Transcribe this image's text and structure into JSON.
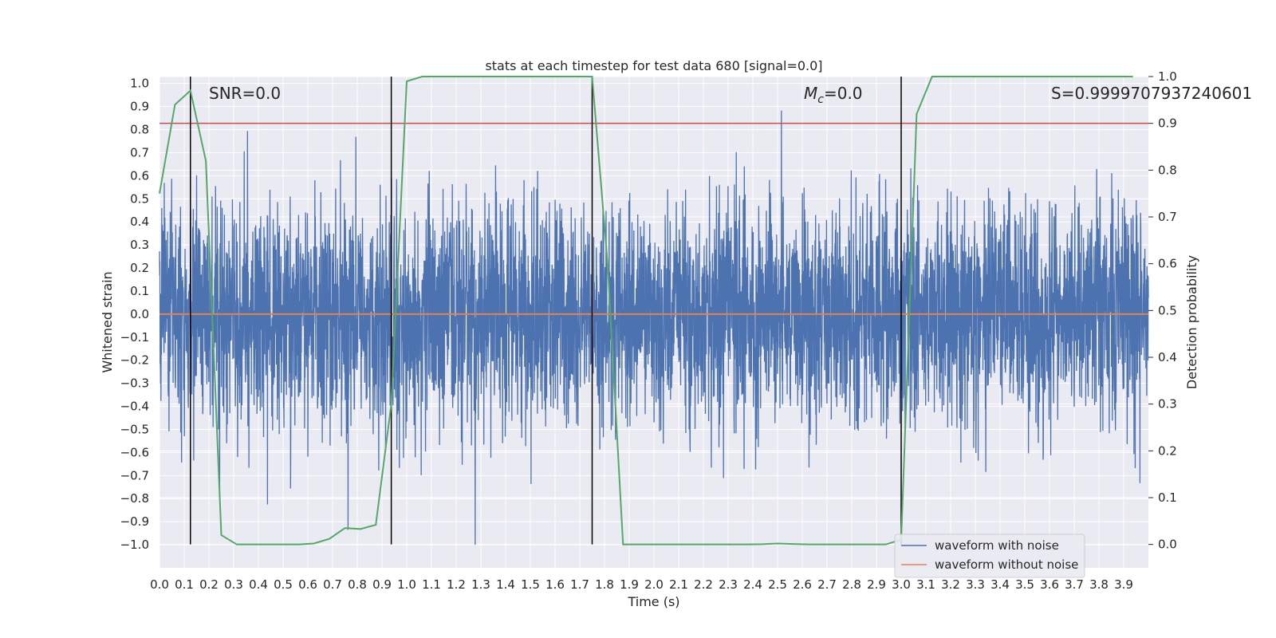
{
  "chart_data": {
    "type": "line",
    "title": "stats at each timestep for test data 680 [signal=0.0]",
    "xlabel": "Time (s)",
    "ylabel_left": "Whitened strain",
    "ylabel_right": "Detection probability",
    "xlim": [
      0.0,
      4.0
    ],
    "ylim_left": [
      -1.1,
      1.03
    ],
    "ylim_right": [
      -0.05,
      1.0
    ],
    "x_ticks": [
      "0.0",
      "0.1",
      "0.2",
      "0.3",
      "0.4",
      "0.5",
      "0.6",
      "0.7",
      "0.8",
      "0.9",
      "1.0",
      "1.1",
      "1.2",
      "1.3",
      "1.4",
      "1.5",
      "1.6",
      "1.7",
      "1.8",
      "1.9",
      "2.0",
      "2.1",
      "2.2",
      "2.3",
      "2.4",
      "2.5",
      "2.6",
      "2.7",
      "2.8",
      "2.9",
      "3.0",
      "3.1",
      "3.2",
      "3.3",
      "3.4",
      "3.5",
      "3.6",
      "3.7",
      "3.8",
      "3.9"
    ],
    "y_ticks_left": [
      "1.0",
      "0.9",
      "0.8",
      "0.7",
      "0.6",
      "0.5",
      "0.4",
      "0.3",
      "0.2",
      "0.1",
      "0.0",
      "−0.1",
      "−0.2",
      "−0.3",
      "−0.4",
      "−0.5",
      "−0.6",
      "−0.7",
      "−0.8",
      "−0.9",
      "−1.0"
    ],
    "y_ticks_right": [
      "1.0",
      "0.9",
      "0.8",
      "0.7",
      "0.6",
      "0.5",
      "0.4",
      "0.3",
      "0.2",
      "0.1",
      "0.0"
    ],
    "grid": true,
    "legend_position": "bottom-right",
    "annotations": {
      "snr": "SNR=0.0",
      "mc_symbol": "M",
      "mc_sub": "c",
      "mc_value": "=0.0",
      "s": "S=0.9999707937240601"
    },
    "series": [
      {
        "name": "waveform with noise",
        "color": "#4c72b0",
        "description": "noise-dominated strain, amplitude envelope approx ±0.5 with spikes to ±1.0"
      },
      {
        "name": "waveform without noise",
        "color": "#dd8452",
        "y_constant": 0.0
      },
      {
        "name": "detection probability",
        "color": "#55a868",
        "axis": "right",
        "x": [
          0.0,
          0.0625,
          0.125,
          0.1875,
          0.25,
          0.3125,
          0.375,
          0.4375,
          0.5,
          0.5625,
          0.625,
          0.6875,
          0.75,
          0.8125,
          0.875,
          0.9375,
          1.0,
          1.0625,
          1.125,
          1.1875,
          1.25,
          1.3125,
          1.375,
          1.4375,
          1.5,
          1.5625,
          1.625,
          1.6875,
          1.75,
          1.8125,
          1.875,
          1.9375,
          2.0,
          2.0625,
          2.125,
          2.1875,
          2.25,
          2.3125,
          2.375,
          2.4375,
          2.5,
          2.5625,
          2.625,
          2.6875,
          2.75,
          2.8125,
          2.875,
          2.9375,
          3.0,
          3.0625,
          3.125,
          3.1875,
          3.25,
          3.3125,
          3.375,
          3.4375,
          3.5,
          3.5625,
          3.625,
          3.6875,
          3.75,
          3.8125,
          3.875,
          3.9375
        ],
        "y": [
          0.75,
          0.94,
          0.97,
          0.82,
          0.02,
          0.0,
          0.0,
          0.0,
          0.0,
          0.0,
          0.002,
          0.012,
          0.035,
          0.033,
          0.042,
          0.3,
          0.99,
          1.0,
          1.0,
          1.0,
          1.0,
          1.0,
          1.0,
          1.0,
          1.0,
          1.0,
          1.0,
          1.0,
          1.0,
          0.6,
          0.0,
          0.0,
          0.0,
          0.0,
          0.0,
          0.0,
          0.0,
          0.0,
          0.0,
          0.0005,
          0.002,
          0.001,
          0.0,
          0.0,
          0.0,
          0.0,
          0.0,
          0.0,
          0.01,
          0.92,
          1.0,
          1.0,
          1.0,
          1.0,
          1.0,
          1.0,
          1.0,
          1.0,
          1.0,
          1.0,
          1.0,
          1.0,
          1.0,
          1.0
        ]
      }
    ],
    "threshold": {
      "axis": "right",
      "y": 0.9,
      "color": "#c44e52"
    },
    "vertical_markers": {
      "x": [
        0.125,
        0.9375,
        1.75,
        3.0
      ],
      "y_range_right": [
        0.0,
        1.0
      ],
      "color": "#000000"
    },
    "legend": {
      "position": "bottom-right",
      "entries": [
        "waveform with noise",
        "waveform without noise"
      ]
    }
  }
}
